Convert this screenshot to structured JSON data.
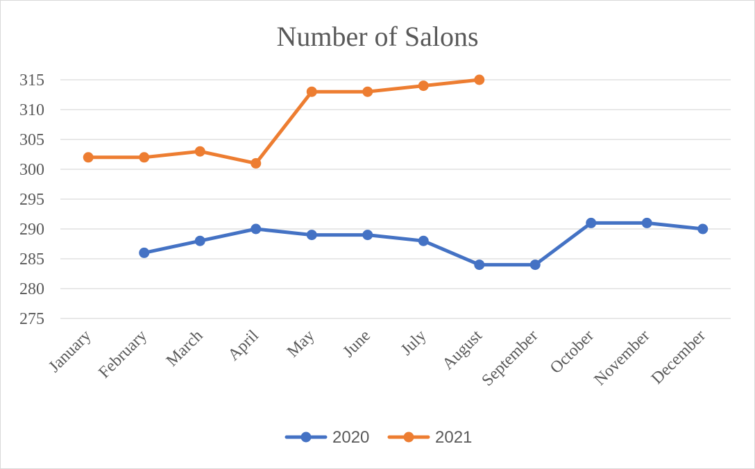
{
  "chart_data": {
    "type": "line",
    "title": "Number of Salons",
    "xlabel": "",
    "ylabel": "",
    "categories": [
      "January",
      "February",
      "March",
      "April",
      "May",
      "June",
      "July",
      "August",
      "September",
      "October",
      "November",
      "December"
    ],
    "ylim": [
      275,
      315
    ],
    "yticks": [
      275,
      280,
      285,
      290,
      295,
      300,
      305,
      310,
      315
    ],
    "grid": true,
    "legend_position": "bottom",
    "series": [
      {
        "name": "2020",
        "color": "#4472c4",
        "values": [
          null,
          286,
          288,
          290,
          289,
          289,
          288,
          284,
          284,
          291,
          291,
          290
        ]
      },
      {
        "name": "2021",
        "color": "#ed7d31",
        "values": [
          302,
          302,
          303,
          301,
          313,
          313,
          314,
          315,
          null,
          null,
          null,
          null
        ]
      }
    ]
  }
}
